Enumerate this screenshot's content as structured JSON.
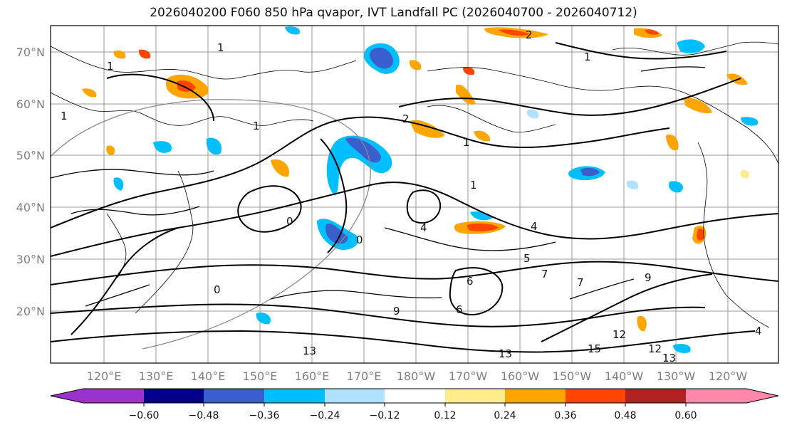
{
  "title": "2026040200 F060 850 hPa qvapor, IVT Landfall PC (2026040700 - 2026040712)",
  "map": {
    "lat_labels": [
      "70°N",
      "60°N",
      "50°N",
      "40°N",
      "30°N",
      "20°N"
    ],
    "lon_labels": [
      "120°E",
      "130°E",
      "140°E",
      "150°E",
      "160°E",
      "170°E",
      "180°W",
      "170°W",
      "160°W",
      "150°W",
      "140°W",
      "130°W",
      "120°W"
    ],
    "contour_labels": [
      "1",
      "1",
      "1",
      "2",
      "1",
      "1",
      "1",
      "0",
      "0",
      "2",
      "1",
      "4",
      "5",
      "7",
      "7",
      "6",
      "9",
      "4",
      "13",
      "13",
      "12",
      "12",
      "15",
      "13",
      "4",
      "9",
      "0",
      "6"
    ]
  },
  "colorbar": {
    "tick_labels": [
      "−0.60",
      "−0.48",
      "−0.36",
      "−0.24",
      "−0.12",
      "0.12",
      "0.24",
      "0.36",
      "0.48",
      "0.60"
    ],
    "colors": [
      "#9933cc",
      "#00008b",
      "#3a5fcd",
      "#00bfff",
      "#b0e2ff",
      "#ffffff",
      "#ffec8b",
      "#ffa500",
      "#ff4500",
      "#b22222",
      "#ff88aa"
    ]
  }
}
